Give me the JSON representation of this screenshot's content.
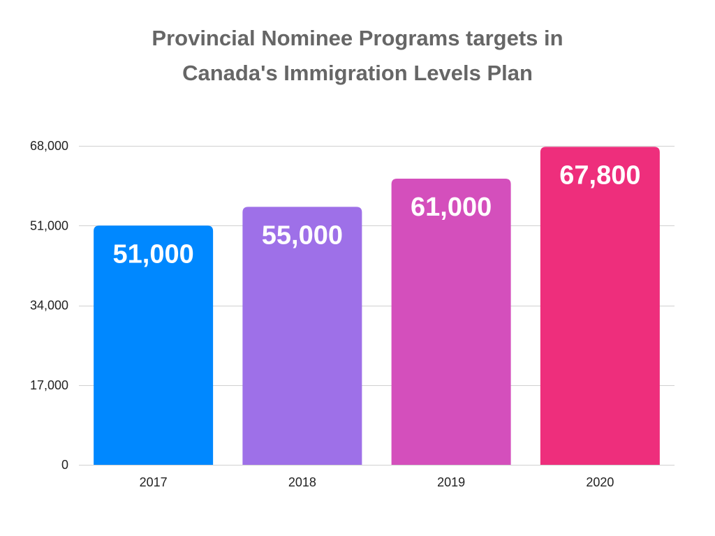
{
  "chart_data": {
    "type": "bar",
    "title_lines": [
      "Provincial Nominee Programs targets in",
      "Canada's Immigration Levels Plan"
    ],
    "xlabel": "",
    "ylabel": "",
    "categories": [
      "2017",
      "2018",
      "2019",
      "2020"
    ],
    "values": [
      51000,
      55000,
      61000,
      67800
    ],
    "data_labels": [
      "51,000",
      "55,000",
      "61,000",
      "67,800"
    ],
    "bar_colors": [
      "#0088ff",
      "#9e70e8",
      "#d44fbc",
      "#ee2e7c"
    ],
    "ylim": [
      0,
      68000
    ],
    "yticks": [
      0,
      17000,
      34000,
      51000,
      68000
    ],
    "ytick_labels": [
      "0",
      "17,000",
      "34,000",
      "51,000",
      "68,000"
    ],
    "grid": true,
    "legend": "none"
  }
}
